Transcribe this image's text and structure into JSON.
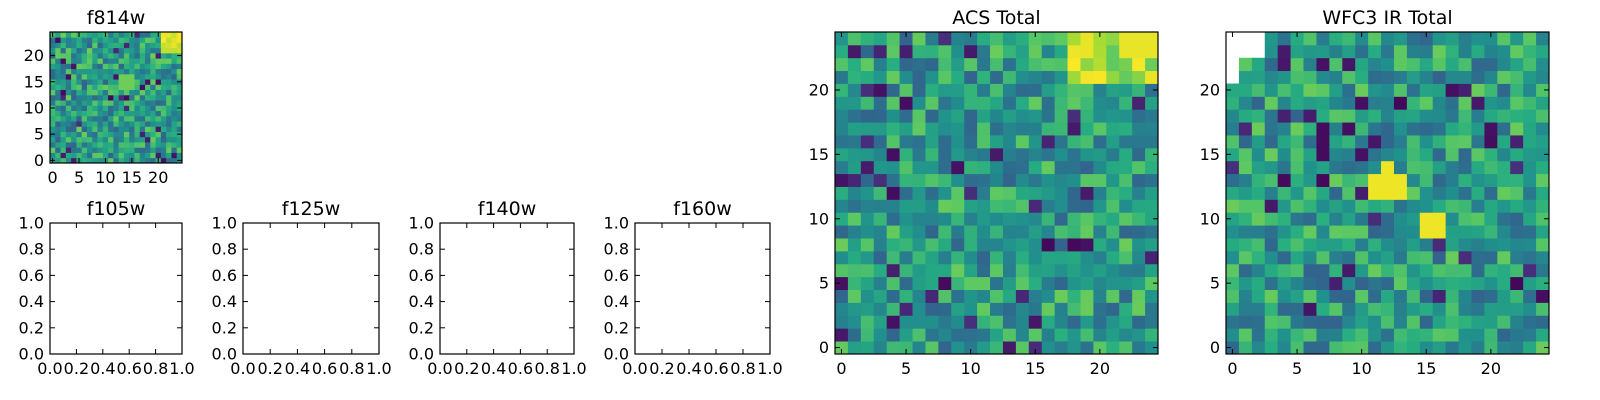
{
  "chart_data": [
    {
      "id": "f814w",
      "type": "heatmap",
      "title": "f814w",
      "grid_size": [
        25,
        25
      ],
      "xlim": [
        -0.5,
        24.5
      ],
      "ylim": [
        -0.5,
        24.5
      ],
      "xticks": [
        0,
        5,
        10,
        15,
        20
      ],
      "yticks": [
        0,
        5,
        10,
        15,
        20
      ],
      "xtick_labels": [
        "0",
        "5",
        "10",
        "15",
        "20"
      ],
      "ytick_labels": [
        "0",
        "5",
        "10",
        "15",
        "20"
      ],
      "colormap": "viridis",
      "bright_region": "upper-right corner",
      "grid": false
    },
    {
      "id": "f105w",
      "type": "heatmap",
      "title": "f105w",
      "empty": true,
      "xlim": [
        0.0,
        1.0
      ],
      "ylim": [
        0.0,
        1.0
      ],
      "xticks": [
        0.0,
        0.2,
        0.4,
        0.6,
        0.8,
        1.0
      ],
      "yticks": [
        0.0,
        0.2,
        0.4,
        0.6,
        0.8,
        1.0
      ],
      "xtick_labels": [
        "0.0",
        "0.2",
        "0.4",
        "0.6",
        "0.8",
        "1.0"
      ],
      "ytick_labels": [
        "0.0",
        "0.2",
        "0.4",
        "0.6",
        "0.8",
        "1.0"
      ],
      "grid": false
    },
    {
      "id": "f125w",
      "type": "heatmap",
      "title": "f125w",
      "empty": true,
      "xlim": [
        0.0,
        1.0
      ],
      "ylim": [
        0.0,
        1.0
      ],
      "xticks": [
        0.0,
        0.2,
        0.4,
        0.6,
        0.8,
        1.0
      ],
      "yticks": [
        0.0,
        0.2,
        0.4,
        0.6,
        0.8,
        1.0
      ],
      "xtick_labels": [
        "0.0",
        "0.2",
        "0.4",
        "0.6",
        "0.8",
        "1.0"
      ],
      "ytick_labels": [
        "0.0",
        "0.2",
        "0.4",
        "0.6",
        "0.8",
        "1.0"
      ],
      "grid": false
    },
    {
      "id": "f140w",
      "type": "heatmap",
      "title": "f140w",
      "empty": true,
      "xlim": [
        0.0,
        1.0
      ],
      "ylim": [
        0.0,
        1.0
      ],
      "xticks": [
        0.0,
        0.2,
        0.4,
        0.6,
        0.8,
        1.0
      ],
      "yticks": [
        0.0,
        0.2,
        0.4,
        0.6,
        0.8,
        1.0
      ],
      "xtick_labels": [
        "0.0",
        "0.2",
        "0.4",
        "0.6",
        "0.8",
        "1.0"
      ],
      "ytick_labels": [
        "0.0",
        "0.2",
        "0.4",
        "0.6",
        "0.8",
        "1.0"
      ],
      "grid": false
    },
    {
      "id": "f160w",
      "type": "heatmap",
      "title": "f160w",
      "empty": true,
      "xlim": [
        0.0,
        1.0
      ],
      "ylim": [
        0.0,
        1.0
      ],
      "xticks": [
        0.0,
        0.2,
        0.4,
        0.6,
        0.8,
        1.0
      ],
      "yticks": [
        0.0,
        0.2,
        0.4,
        0.6,
        0.8,
        1.0
      ],
      "xtick_labels": [
        "0.0",
        "0.2",
        "0.4",
        "0.6",
        "0.8",
        "1.0"
      ],
      "ytick_labels": [
        "0.0",
        "0.2",
        "0.4",
        "0.6",
        "0.8",
        "1.0"
      ],
      "grid": false
    },
    {
      "id": "acs-total",
      "type": "heatmap",
      "title": "ACS Total",
      "grid_size": [
        25,
        25
      ],
      "xlim": [
        -0.5,
        24.5
      ],
      "ylim": [
        -0.5,
        24.5
      ],
      "xticks": [
        0,
        5,
        10,
        15,
        20
      ],
      "yticks": [
        0,
        5,
        10,
        15,
        20
      ],
      "xtick_labels": [
        "0",
        "5",
        "10",
        "15",
        "20"
      ],
      "ytick_labels": [
        "0",
        "5",
        "10",
        "15",
        "20"
      ],
      "colormap": "viridis",
      "bright_region": "top edge, right side",
      "grid": false
    },
    {
      "id": "wfc3-ir-total",
      "type": "heatmap",
      "title": "WFC3 IR Total",
      "grid_size": [
        25,
        25
      ],
      "xlim": [
        -0.5,
        24.5
      ],
      "ylim": [
        -0.5,
        24.5
      ],
      "xticks": [
        0,
        5,
        10,
        15,
        20
      ],
      "yticks": [
        0,
        5,
        10,
        15,
        20
      ],
      "xtick_labels": [
        "0",
        "5",
        "10",
        "15",
        "20"
      ],
      "ytick_labels": [
        "0",
        "5",
        "10",
        "15",
        "20"
      ],
      "colormap": "viridis",
      "masked_region": "upper-left corner (white, no data)",
      "bright_spots": [
        [
          11.5,
          12.5
        ],
        [
          15.5,
          9.5
        ]
      ],
      "grid": false
    }
  ],
  "colors": {
    "background": "#ffffff",
    "axis": "#000000",
    "viridis_low": "#440154",
    "viridis_high": "#fde725"
  }
}
